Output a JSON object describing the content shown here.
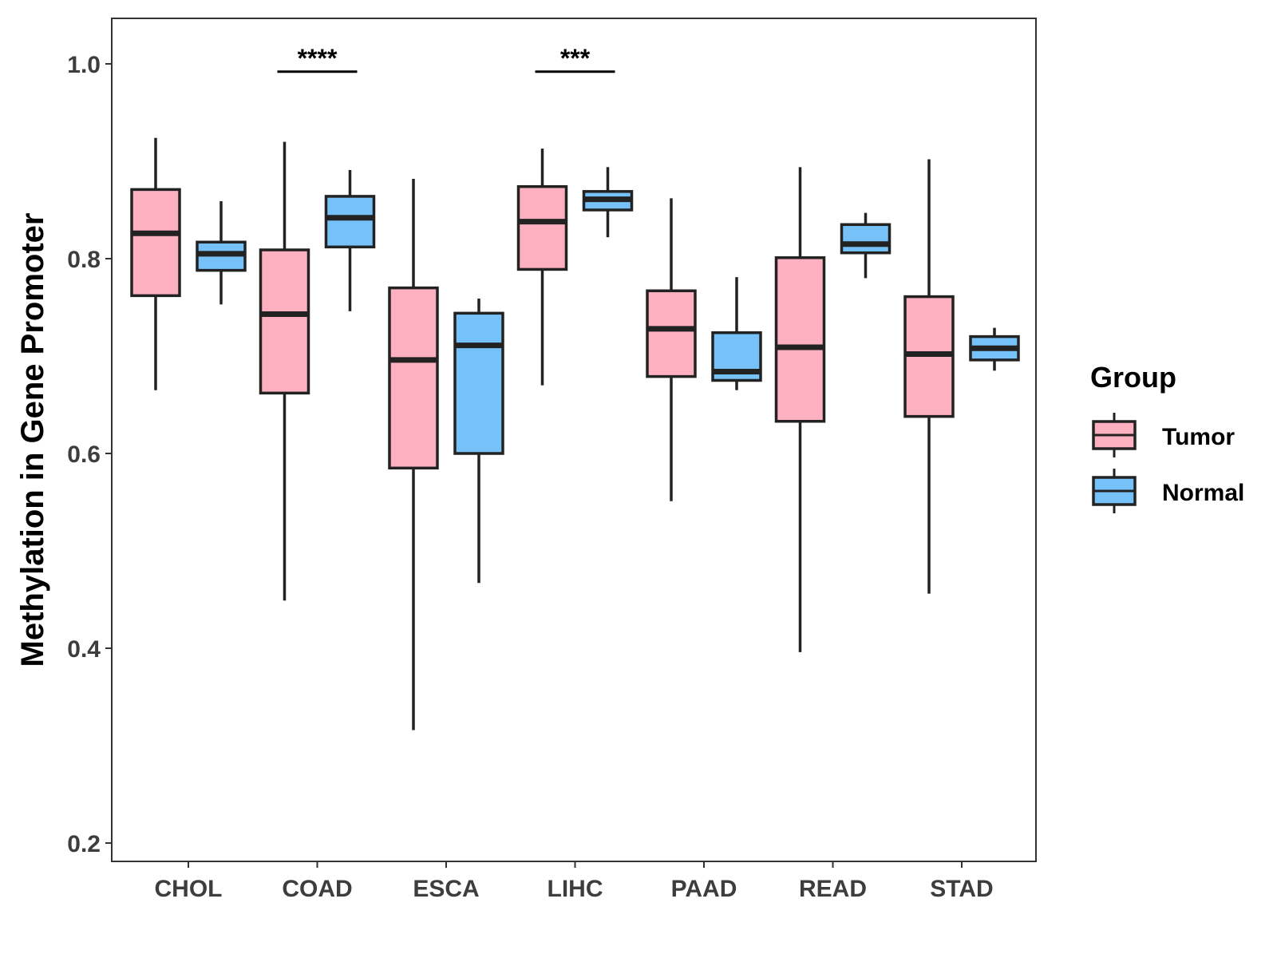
{
  "chart_data": {
    "type": "boxplot",
    "title": "",
    "xlabel": "",
    "ylabel": "Methylation in Gene Promoter",
    "ylim": [
      0.18,
      1.05
    ],
    "yticks": [
      0.2,
      0.4,
      0.6,
      0.8,
      1.0
    ],
    "ytick_labels": [
      "0.2",
      "0.4",
      "0.6",
      "0.8",
      "1.0"
    ],
    "categories": [
      "CHOL",
      "COAD",
      "ESCA",
      "LIHC",
      "PAAD",
      "READ",
      "STAD"
    ],
    "legend": {
      "title": "Group",
      "position": "right",
      "entries": [
        {
          "name": "Tumor",
          "color": "#fdb0c0"
        },
        {
          "name": "Normal",
          "color": "#75c1f8"
        }
      ]
    },
    "series": [
      {
        "name": "Tumor",
        "color": "#fdb0c0",
        "boxes": [
          {
            "min": 0.665,
            "q1": 0.762,
            "median": 0.826,
            "q3": 0.871,
            "max": 0.924
          },
          {
            "min": 0.449,
            "q1": 0.662,
            "median": 0.743,
            "q3": 0.809,
            "max": 0.92
          },
          {
            "min": 0.316,
            "q1": 0.585,
            "median": 0.696,
            "q3": 0.77,
            "max": 0.882
          },
          {
            "min": 0.67,
            "q1": 0.789,
            "median": 0.838,
            "q3": 0.874,
            "max": 0.913
          },
          {
            "min": 0.551,
            "q1": 0.679,
            "median": 0.728,
            "q3": 0.767,
            "max": 0.862
          },
          {
            "min": 0.396,
            "q1": 0.633,
            "median": 0.709,
            "q3": 0.801,
            "max": 0.894
          },
          {
            "min": 0.456,
            "q1": 0.638,
            "median": 0.702,
            "q3": 0.761,
            "max": 0.902
          }
        ]
      },
      {
        "name": "Normal",
        "color": "#75c1f8",
        "boxes": [
          {
            "min": 0.753,
            "q1": 0.788,
            "median": 0.805,
            "q3": 0.817,
            "max": 0.859
          },
          {
            "min": 0.746,
            "q1": 0.812,
            "median": 0.842,
            "q3": 0.864,
            "max": 0.891
          },
          {
            "min": 0.467,
            "q1": 0.6,
            "median": 0.711,
            "q3": 0.744,
            "max": 0.759
          },
          {
            "min": 0.822,
            "q1": 0.85,
            "median": 0.861,
            "q3": 0.869,
            "max": 0.894
          },
          {
            "min": 0.665,
            "q1": 0.675,
            "median": 0.684,
            "q3": 0.724,
            "max": 0.781
          },
          {
            "min": 0.78,
            "q1": 0.806,
            "median": 0.815,
            "q3": 0.835,
            "max": 0.847
          },
          {
            "min": 0.685,
            "q1": 0.696,
            "median": 0.708,
            "q3": 0.72,
            "max": 0.729
          }
        ]
      }
    ],
    "annotations": [
      {
        "category": "COAD",
        "text": "****",
        "y": 0.992
      },
      {
        "category": "LIHC",
        "text": "***",
        "y": 0.992
      }
    ]
  }
}
